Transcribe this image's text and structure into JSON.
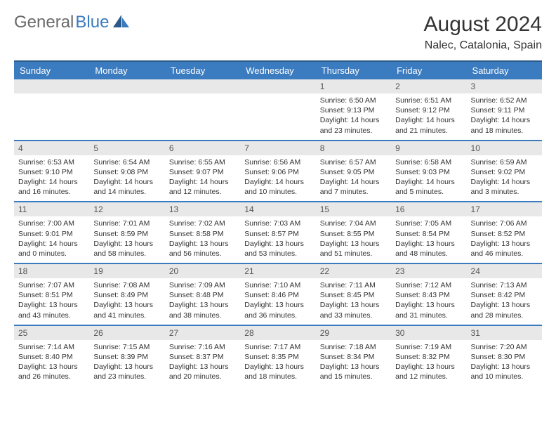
{
  "logo": {
    "part1": "General",
    "part2": "Blue"
  },
  "title": "August 2024",
  "location": "Nalec, Catalonia, Spain",
  "colors": {
    "header_bg": "#3b7bbf",
    "header_border": "#2b5a8a",
    "row_border": "#3b7bbf",
    "date_bg": "#e8e8e8",
    "logo_gray": "#6a6a6a",
    "logo_blue": "#3b7bbf"
  },
  "headers": [
    "Sunday",
    "Monday",
    "Tuesday",
    "Wednesday",
    "Thursday",
    "Friday",
    "Saturday"
  ],
  "weeks": [
    [
      null,
      null,
      null,
      null,
      {
        "d": "1",
        "sr": "6:50 AM",
        "ss": "9:13 PM",
        "dl": "14 hours and 23 minutes."
      },
      {
        "d": "2",
        "sr": "6:51 AM",
        "ss": "9:12 PM",
        "dl": "14 hours and 21 minutes."
      },
      {
        "d": "3",
        "sr": "6:52 AM",
        "ss": "9:11 PM",
        "dl": "14 hours and 18 minutes."
      }
    ],
    [
      {
        "d": "4",
        "sr": "6:53 AM",
        "ss": "9:10 PM",
        "dl": "14 hours and 16 minutes."
      },
      {
        "d": "5",
        "sr": "6:54 AM",
        "ss": "9:08 PM",
        "dl": "14 hours and 14 minutes."
      },
      {
        "d": "6",
        "sr": "6:55 AM",
        "ss": "9:07 PM",
        "dl": "14 hours and 12 minutes."
      },
      {
        "d": "7",
        "sr": "6:56 AM",
        "ss": "9:06 PM",
        "dl": "14 hours and 10 minutes."
      },
      {
        "d": "8",
        "sr": "6:57 AM",
        "ss": "9:05 PM",
        "dl": "14 hours and 7 minutes."
      },
      {
        "d": "9",
        "sr": "6:58 AM",
        "ss": "9:03 PM",
        "dl": "14 hours and 5 minutes."
      },
      {
        "d": "10",
        "sr": "6:59 AM",
        "ss": "9:02 PM",
        "dl": "14 hours and 3 minutes."
      }
    ],
    [
      {
        "d": "11",
        "sr": "7:00 AM",
        "ss": "9:01 PM",
        "dl": "14 hours and 0 minutes."
      },
      {
        "d": "12",
        "sr": "7:01 AM",
        "ss": "8:59 PM",
        "dl": "13 hours and 58 minutes."
      },
      {
        "d": "13",
        "sr": "7:02 AM",
        "ss": "8:58 PM",
        "dl": "13 hours and 56 minutes."
      },
      {
        "d": "14",
        "sr": "7:03 AM",
        "ss": "8:57 PM",
        "dl": "13 hours and 53 minutes."
      },
      {
        "d": "15",
        "sr": "7:04 AM",
        "ss": "8:55 PM",
        "dl": "13 hours and 51 minutes."
      },
      {
        "d": "16",
        "sr": "7:05 AM",
        "ss": "8:54 PM",
        "dl": "13 hours and 48 minutes."
      },
      {
        "d": "17",
        "sr": "7:06 AM",
        "ss": "8:52 PM",
        "dl": "13 hours and 46 minutes."
      }
    ],
    [
      {
        "d": "18",
        "sr": "7:07 AM",
        "ss": "8:51 PM",
        "dl": "13 hours and 43 minutes."
      },
      {
        "d": "19",
        "sr": "7:08 AM",
        "ss": "8:49 PM",
        "dl": "13 hours and 41 minutes."
      },
      {
        "d": "20",
        "sr": "7:09 AM",
        "ss": "8:48 PM",
        "dl": "13 hours and 38 minutes."
      },
      {
        "d": "21",
        "sr": "7:10 AM",
        "ss": "8:46 PM",
        "dl": "13 hours and 36 minutes."
      },
      {
        "d": "22",
        "sr": "7:11 AM",
        "ss": "8:45 PM",
        "dl": "13 hours and 33 minutes."
      },
      {
        "d": "23",
        "sr": "7:12 AM",
        "ss": "8:43 PM",
        "dl": "13 hours and 31 minutes."
      },
      {
        "d": "24",
        "sr": "7:13 AM",
        "ss": "8:42 PM",
        "dl": "13 hours and 28 minutes."
      }
    ],
    [
      {
        "d": "25",
        "sr": "7:14 AM",
        "ss": "8:40 PM",
        "dl": "13 hours and 26 minutes."
      },
      {
        "d": "26",
        "sr": "7:15 AM",
        "ss": "8:39 PM",
        "dl": "13 hours and 23 minutes."
      },
      {
        "d": "27",
        "sr": "7:16 AM",
        "ss": "8:37 PM",
        "dl": "13 hours and 20 minutes."
      },
      {
        "d": "28",
        "sr": "7:17 AM",
        "ss": "8:35 PM",
        "dl": "13 hours and 18 minutes."
      },
      {
        "d": "29",
        "sr": "7:18 AM",
        "ss": "8:34 PM",
        "dl": "13 hours and 15 minutes."
      },
      {
        "d": "30",
        "sr": "7:19 AM",
        "ss": "8:32 PM",
        "dl": "13 hours and 12 minutes."
      },
      {
        "d": "31",
        "sr": "7:20 AM",
        "ss": "8:30 PM",
        "dl": "13 hours and 10 minutes."
      }
    ]
  ],
  "labels": {
    "sunrise": "Sunrise:",
    "sunset": "Sunset:",
    "daylight": "Daylight:"
  }
}
